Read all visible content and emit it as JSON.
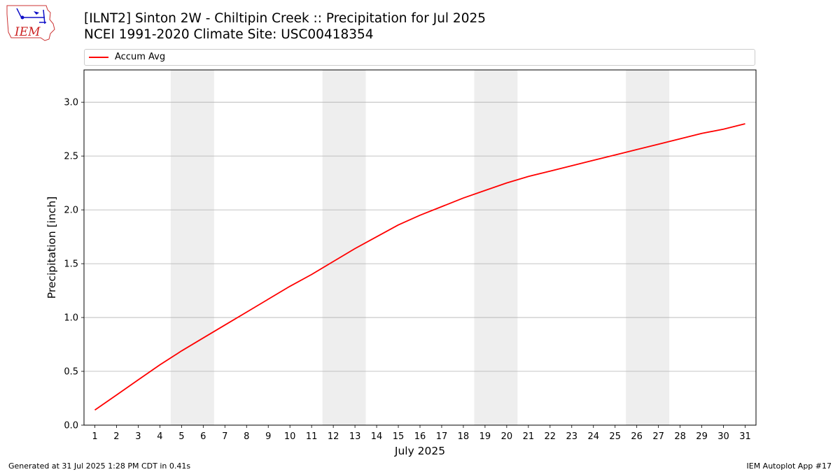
{
  "header": {
    "logo_text": "IEM",
    "title_line1": "[ILNT2] Sinton 2W - Chiltipin Creek :: Precipitation for Jul 2025",
    "title_line2": "NCEI 1991-2020 Climate Site: USC00418354"
  },
  "footer": {
    "generated": "Generated at 31 Jul 2025 1:28 PM CDT in 0.41s",
    "app": "IEM Autoplot App #17"
  },
  "colors": {
    "series": "#ff0000",
    "weekend_band": "#eeeeee",
    "grid": "#b0b0b0"
  },
  "chart_data": {
    "type": "line",
    "title": "[ILNT2] Sinton 2W - Chiltipin Creek :: Precipitation for Jul 2025",
    "subtitle": "NCEI 1991-2020 Climate Site: USC00418354",
    "xlabel": "July 2025",
    "ylabel": "Precipitation [inch]",
    "xlim": [
      0.5,
      31.5
    ],
    "ylim": [
      0,
      3.3
    ],
    "x_ticks": [
      1,
      2,
      3,
      4,
      5,
      6,
      7,
      8,
      9,
      10,
      11,
      12,
      13,
      14,
      15,
      16,
      17,
      18,
      19,
      20,
      21,
      22,
      23,
      24,
      25,
      26,
      27,
      28,
      29,
      30,
      31
    ],
    "y_ticks": [
      "0.0",
      "0.5",
      "1.0",
      "1.5",
      "2.0",
      "2.5",
      "3.0"
    ],
    "grid": "horizontal",
    "legend_position": "top",
    "shaded_days": [
      [
        5,
        6
      ],
      [
        12,
        13
      ],
      [
        19,
        20
      ],
      [
        26,
        27
      ]
    ],
    "series": [
      {
        "name": "Accum Avg",
        "color": "#ff0000",
        "x": [
          1,
          2,
          3,
          4,
          5,
          6,
          7,
          8,
          9,
          10,
          11,
          12,
          13,
          14,
          15,
          16,
          17,
          18,
          19,
          20,
          21,
          22,
          23,
          24,
          25,
          26,
          27,
          28,
          29,
          30,
          31
        ],
        "values": [
          0.14,
          0.28,
          0.42,
          0.56,
          0.69,
          0.81,
          0.93,
          1.05,
          1.17,
          1.29,
          1.4,
          1.52,
          1.64,
          1.75,
          1.86,
          1.95,
          2.03,
          2.11,
          2.18,
          2.25,
          2.31,
          2.36,
          2.41,
          2.46,
          2.51,
          2.56,
          2.61,
          2.66,
          2.71,
          2.75,
          2.8
        ]
      }
    ]
  }
}
